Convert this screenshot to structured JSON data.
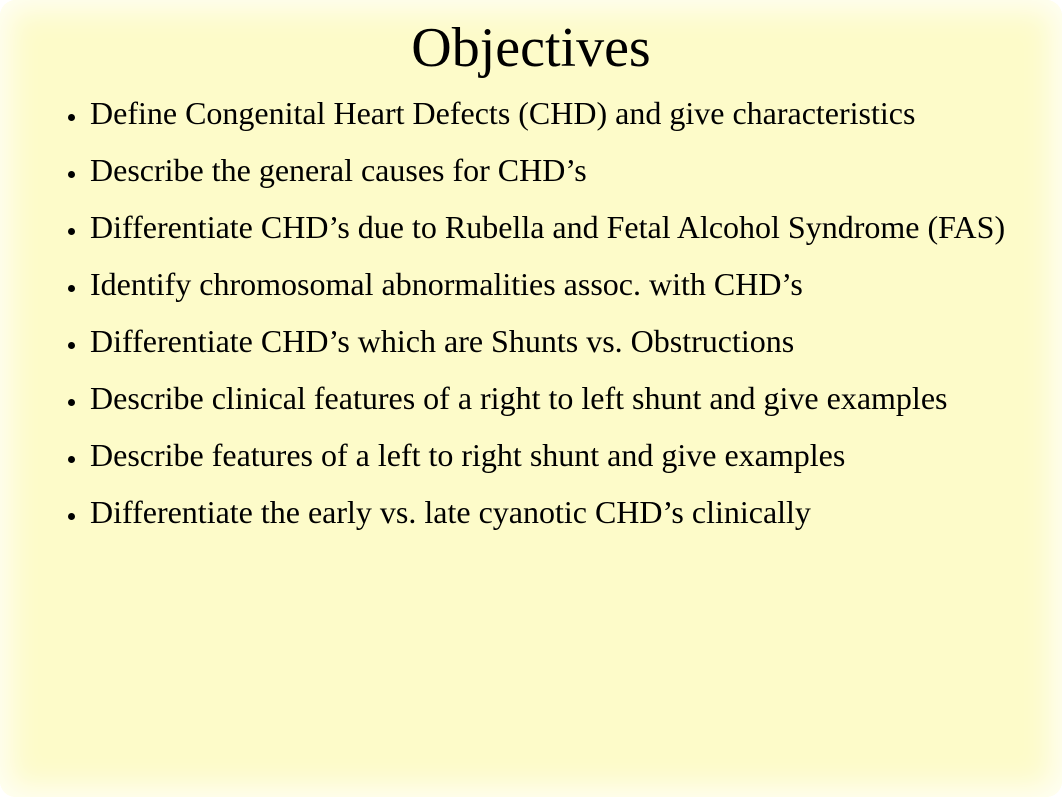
{
  "slide": {
    "title": "Objectives",
    "background_color": "#fdfbc9",
    "title_fontsize": 56,
    "body_fontsize": 32,
    "text_color": "#000000",
    "font_family": "Times New Roman",
    "bullets": [
      "Define Congenital Heart Defects (CHD) and give characteristics",
      "Describe the general causes for CHD’s",
      "Differentiate CHD’s due to Rubella and Fetal Alcohol Syndrome (FAS)",
      "Identify chromosomal abnormalities assoc. with CHD’s",
      "Differentiate CHD’s which are Shunts vs. Obstructions",
      "Describe clinical features of a right to left shunt and give examples",
      "Describe features of a left to right shunt and give examples",
      "Differentiate the early vs. late cyanotic CHD’s clinically"
    ]
  }
}
